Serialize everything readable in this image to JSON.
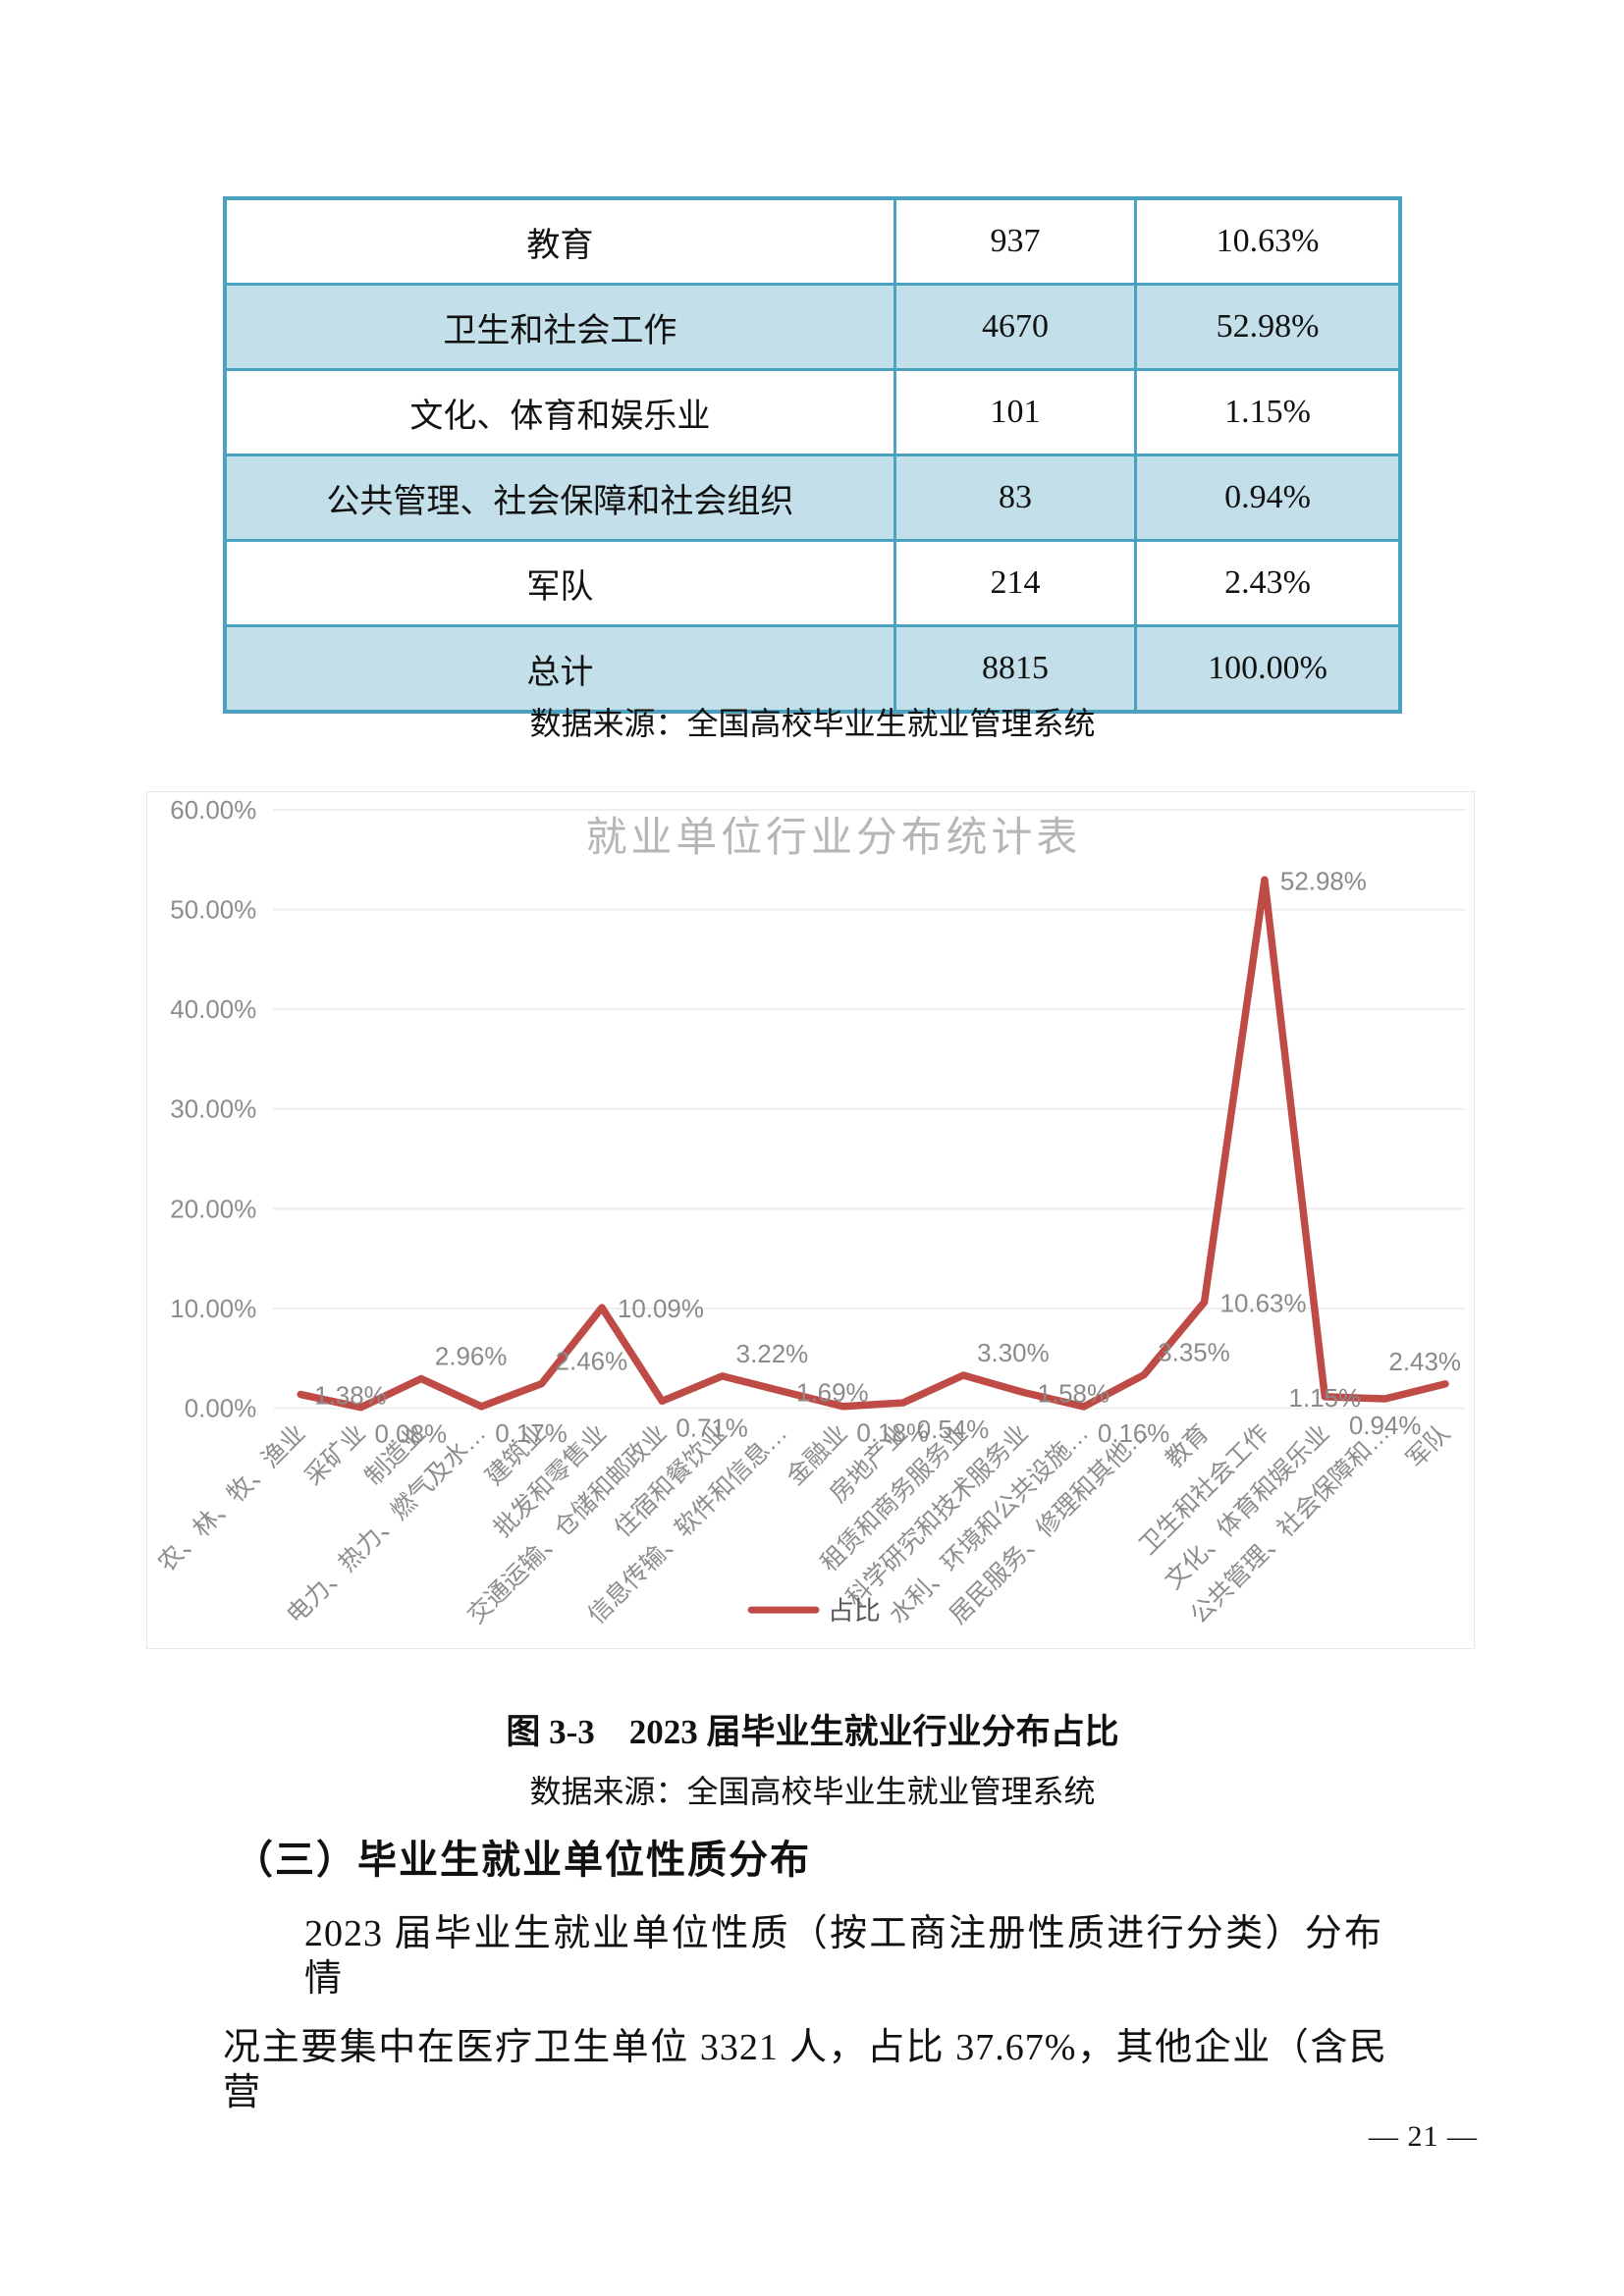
{
  "table": {
    "rows": [
      {
        "industry": "教育",
        "count": "937",
        "share": "10.63%"
      },
      {
        "industry": "卫生和社会工作",
        "count": "4670",
        "share": "52.98%"
      },
      {
        "industry": "文化、体育和娱乐业",
        "count": "101",
        "share": "1.15%"
      },
      {
        "industry": "公共管理、社会保障和社会组织",
        "count": "83",
        "share": "0.94%"
      },
      {
        "industry": "军队",
        "count": "214",
        "share": "2.43%"
      },
      {
        "industry": "总计",
        "count": "8815",
        "share": "100.00%"
      }
    ],
    "border_color": "#4aa2c0",
    "zebra_color": "#c3e0ea"
  },
  "notes": {
    "source_top": "数据来源：全国高校毕业生就业管理系统",
    "source_bottom": "数据来源：全国高校毕业生就业管理系统"
  },
  "figure": {
    "caption": "图 3-3　2023 届毕业生就业行业分布占比"
  },
  "section": {
    "heading": "（三）毕业生就业单位性质分布",
    "paragraph_lines": [
      "2023 届毕业生就业单位性质（按工商注册性质进行分类）分布情",
      "况主要集中在医疗卫生单位 3321 人，占比 37.67%，其他企业（含民营"
    ]
  },
  "page": {
    "number_label": "— 21 —"
  },
  "chart_data": {
    "type": "line",
    "title": "就业单位行业分布统计表",
    "legend": "占比",
    "legend_position": "bottom",
    "grid": true,
    "ylim": [
      0,
      60
    ],
    "ytick_labels": [
      "0.00%",
      "10.00%",
      "20.00%",
      "30.00%",
      "40.00%",
      "50.00%",
      "60.00%"
    ],
    "categories": [
      "农、林、牧、渔业",
      "采矿业",
      "制造业",
      "电力、热力、燃气及水…",
      "建筑业",
      "批发和零售业",
      "交通运输、仓储和邮政业",
      "住宿和餐饮业",
      "信息传输、软件和信息…",
      "金融业",
      "房地产业",
      "租赁和商务服务业",
      "科学研究和技术服务业",
      "水利、环境和公共设施…",
      "居民服务、修理和其他…",
      "教育",
      "卫生和社会工作",
      "文化、体育和娱乐业",
      "公共管理、社会保障和…",
      "军队"
    ],
    "values": [
      1.38,
      0.08,
      2.96,
      0.17,
      2.46,
      10.09,
      0.71,
      3.22,
      1.69,
      0.18,
      0.54,
      3.3,
      1.58,
      0.16,
      3.35,
      10.63,
      52.98,
      1.15,
      0.94,
      2.43
    ],
    "value_labels": [
      "1.38%",
      "0.08%",
      "2.96%",
      "0.17%",
      "2.46%",
      "10.09%",
      "0.71%",
      "3.22%",
      "1.69%",
      "0.18%",
      "0.54%",
      "3.30%",
      "1.58%",
      "0.16%",
      "3.35%",
      "10.63%",
      "52.98%",
      "1.15%",
      "0.94%",
      "2.43%"
    ],
    "colors": {
      "line": "#bf4b46",
      "data_label": "#8c8989",
      "tick_label": "#8f8c8c",
      "title": "#b8b5b5",
      "gridline": "#efeeec",
      "legend_text": "#595959"
    }
  }
}
